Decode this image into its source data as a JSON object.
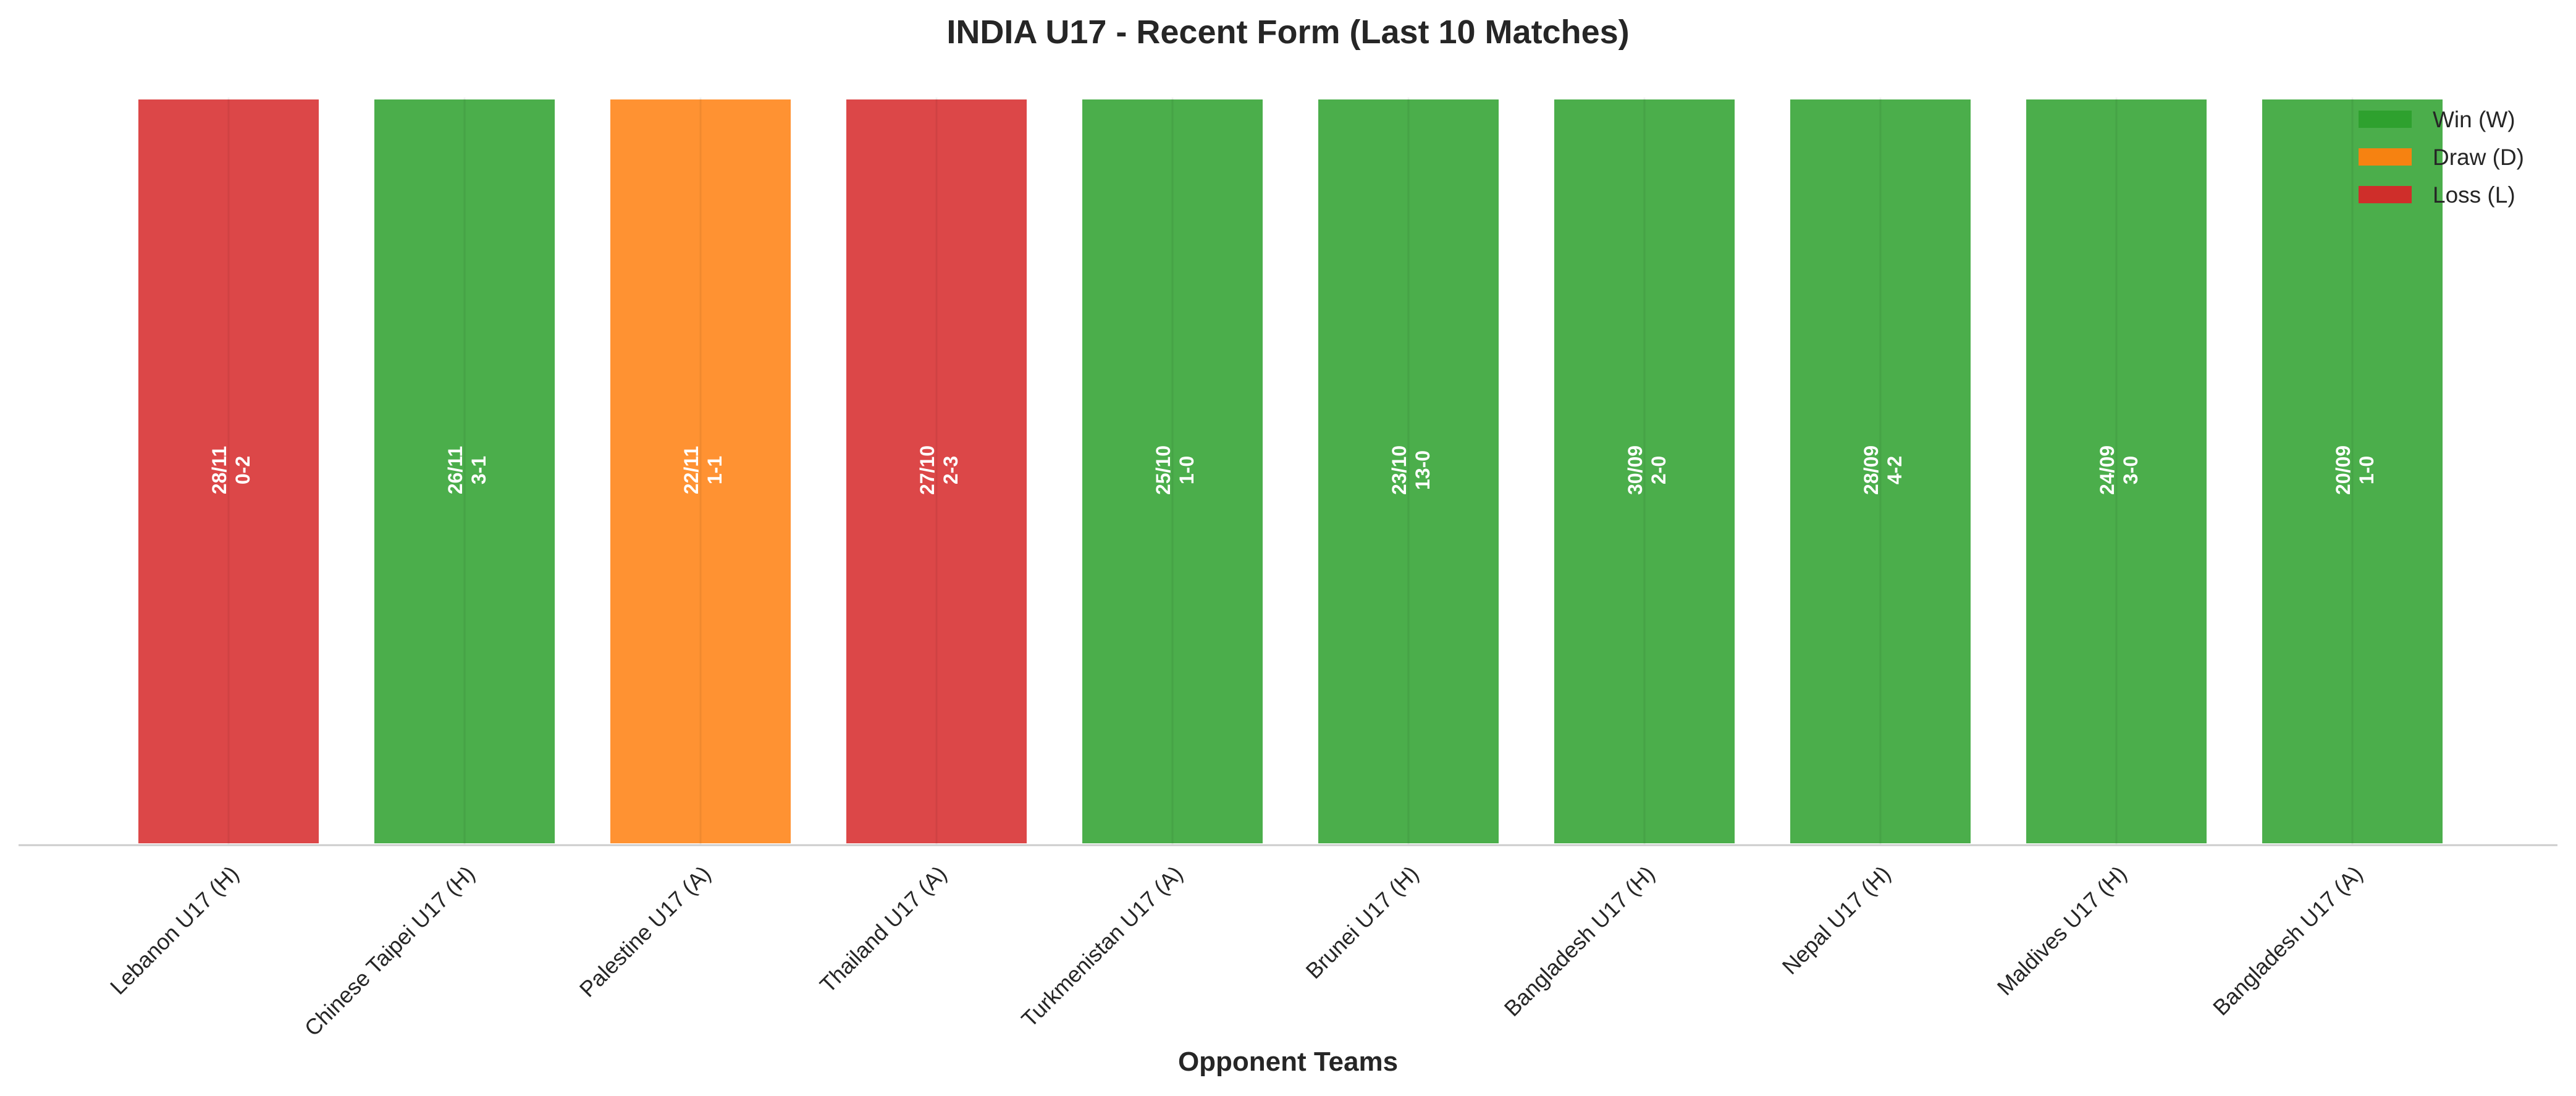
{
  "chart_data": {
    "type": "bar",
    "title": "INDIA U17 - Recent Form (Last 10 Matches)",
    "xlabel": "Opponent Teams",
    "ylabel": "",
    "categories": [
      "Lebanon U17 (H)",
      "Chinese Taipei U17 (H)",
      "Palestine U17 (A)",
      "Thailand U17 (A)",
      "Turkmenistan U17 (A)",
      "Brunei U17 (H)",
      "Bangladesh U17 (H)",
      "Nepal U17 (H)",
      "Maldives U17 (H)",
      "Bangladesh U17 (A)"
    ],
    "values": [
      1,
      1,
      1,
      1,
      1,
      1,
      1,
      1,
      1,
      1
    ],
    "results": [
      "L",
      "W",
      "D",
      "L",
      "W",
      "W",
      "W",
      "W",
      "W",
      "W"
    ],
    "dates": [
      "28/11",
      "26/11",
      "22/11",
      "27/10",
      "25/10",
      "23/10",
      "30/09",
      "28/09",
      "24/09",
      "20/09"
    ],
    "scores": [
      "0-2",
      "3-1",
      "1-1",
      "2-3",
      "1-0",
      "13-0",
      "2-0",
      "4-2",
      "3-0",
      "1-0"
    ],
    "ylim": [
      0,
      1
    ],
    "grid": false,
    "legend": {
      "position": "top-right",
      "entries": [
        {
          "key": "W",
          "label": "Win (W)",
          "color": "#2ca02c"
        },
        {
          "key": "D",
          "label": "Draw (D)",
          "color": "#ff7f0e"
        },
        {
          "key": "L",
          "label": "Loss (L)",
          "color": "#d62728"
        }
      ]
    },
    "colors": {
      "W": "#2ca02c",
      "D": "#ff7f0e",
      "L": "#d62728"
    },
    "bar_opacity": 0.85
  }
}
